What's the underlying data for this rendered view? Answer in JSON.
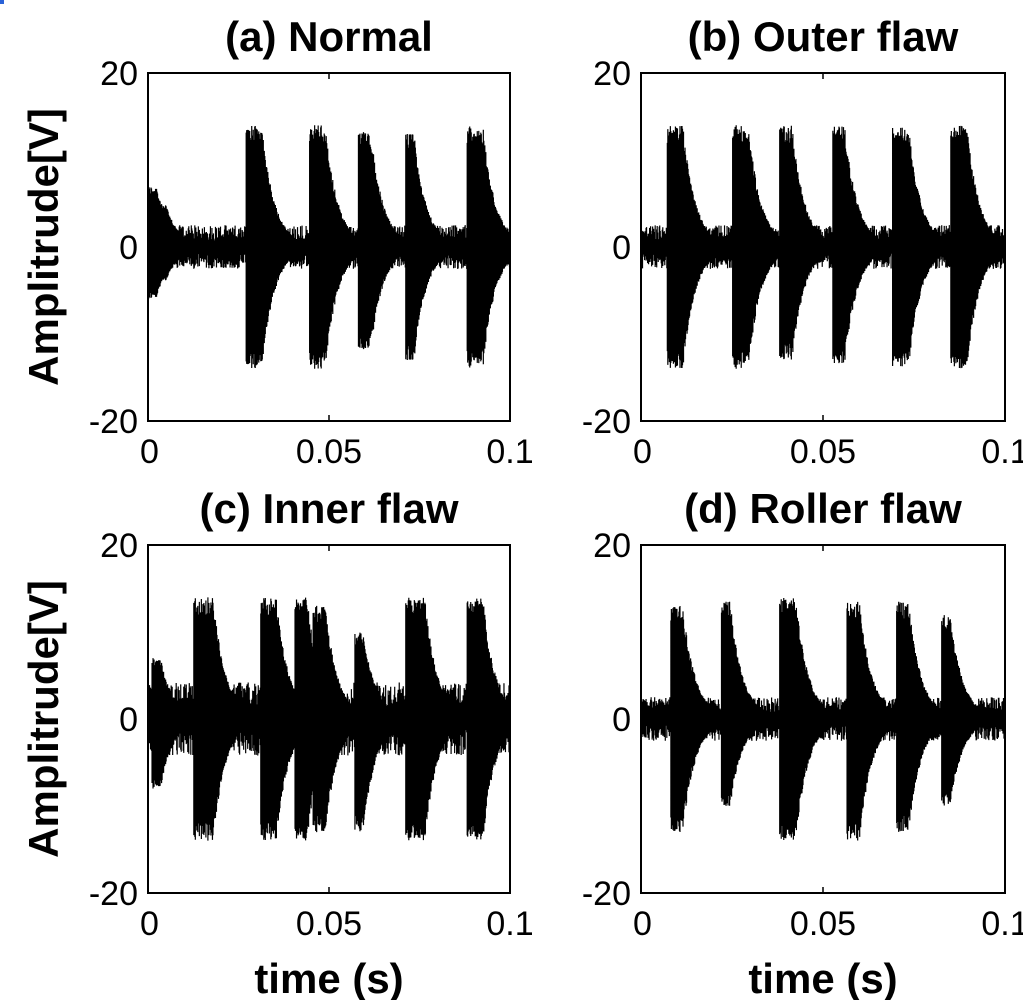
{
  "chart_data": [
    {
      "type": "line",
      "panel": "a",
      "title": "(a) Normal",
      "xlabel": "",
      "ylabel": "Amplitrude[V]",
      "xlim": [
        0,
        0.1
      ],
      "ylim": [
        -20,
        20
      ],
      "xticks": [
        "0",
        "0.05",
        "0.1"
      ],
      "yticks": [
        "-20",
        "0",
        "20"
      ],
      "baseline_noise": 1.8,
      "series": [
        {
          "impulses": [
            {
              "t": 0.0005,
              "pos": 7,
              "neg": -6,
              "w": 0.002
            },
            {
              "t": 0.004,
              "pos": 5,
              "neg": -4,
              "w": 0.001
            },
            {
              "t": 0.0275,
              "pos": 14,
              "neg": -14,
              "w": 0.004
            },
            {
              "t": 0.045,
              "pos": 14,
              "neg": -14,
              "w": 0.004
            },
            {
              "t": 0.0585,
              "pos": 13.5,
              "neg": -12,
              "w": 0.003
            },
            {
              "t": 0.0715,
              "pos": 13,
              "neg": -13,
              "w": 0.002
            },
            {
              "t": 0.0885,
              "pos": 14,
              "neg": -14,
              "w": 0.004
            }
          ]
        }
      ]
    },
    {
      "type": "line",
      "panel": "b",
      "title": "(b) Outer flaw",
      "xlabel": "",
      "ylabel": "",
      "xlim": [
        0,
        0.1
      ],
      "ylim": [
        -20,
        20
      ],
      "xticks": [
        "0",
        "0.05",
        "0.1"
      ],
      "yticks": [
        "-20",
        "0",
        "20"
      ],
      "baseline_noise": 1.8,
      "series": [
        {
          "impulses": [
            {
              "t": 0.0075,
              "pos": 14,
              "neg": -14,
              "w": 0.004
            },
            {
              "t": 0.0255,
              "pos": 14,
              "neg": -14,
              "w": 0.004
            },
            {
              "t": 0.0385,
              "pos": 14,
              "neg": -13,
              "w": 0.003
            },
            {
              "t": 0.053,
              "pos": 14,
              "neg": -13.5,
              "w": 0.003
            },
            {
              "t": 0.0695,
              "pos": 14,
              "neg": -14,
              "w": 0.004
            },
            {
              "t": 0.0855,
              "pos": 14,
              "neg": -14,
              "w": 0.004
            }
          ]
        }
      ]
    },
    {
      "type": "line",
      "panel": "c",
      "title": "(c) Inner flaw",
      "xlabel": "time (s)",
      "ylabel": "Amplitrude[V]",
      "xlim": [
        0,
        0.1
      ],
      "ylim": [
        -20,
        20
      ],
      "xticks": [
        "0",
        "0.05",
        "0.1"
      ],
      "yticks": [
        "-20",
        "0",
        "20"
      ],
      "baseline_noise": 3,
      "series": [
        {
          "impulses": [
            {
              "t": 0.0015,
              "pos": 7,
              "neg": -8,
              "w": 0.002
            },
            {
              "t": 0.013,
              "pos": 14,
              "neg": -14,
              "w": 0.005
            },
            {
              "t": 0.0315,
              "pos": 14,
              "neg": -14,
              "w": 0.004
            },
            {
              "t": 0.041,
              "pos": 14,
              "neg": -14,
              "w": 0.003
            },
            {
              "t": 0.046,
              "pos": 13,
              "neg": -13,
              "w": 0.003
            },
            {
              "t": 0.0575,
              "pos": 10,
              "neg": -13,
              "w": 0.002
            },
            {
              "t": 0.0715,
              "pos": 14,
              "neg": -14,
              "w": 0.005
            },
            {
              "t": 0.0885,
              "pos": 14,
              "neg": -14,
              "w": 0.004
            }
          ]
        }
      ]
    },
    {
      "type": "line",
      "panel": "d",
      "title": "(d) Roller flaw",
      "xlabel": "time (s)",
      "ylabel": "",
      "xlim": [
        0,
        0.1
      ],
      "ylim": [
        -20,
        20
      ],
      "xticks": [
        "0",
        "0.05",
        "0.1"
      ],
      "yticks": [
        "-20",
        "0",
        "20"
      ],
      "baseline_noise": 1.8,
      "series": [
        {
          "impulses": [
            {
              "t": 0.0085,
              "pos": 13,
              "neg": -13,
              "w": 0.003
            },
            {
              "t": 0.0225,
              "pos": 13.5,
              "neg": -10,
              "w": 0.002
            },
            {
              "t": 0.0385,
              "pos": 14,
              "neg": -14,
              "w": 0.004
            },
            {
              "t": 0.057,
              "pos": 13.5,
              "neg": -14,
              "w": 0.003
            },
            {
              "t": 0.0705,
              "pos": 13.5,
              "neg": -13,
              "w": 0.003
            },
            {
              "t": 0.083,
              "pos": 12,
              "neg": -10,
              "w": 0.002
            }
          ]
        }
      ]
    }
  ]
}
